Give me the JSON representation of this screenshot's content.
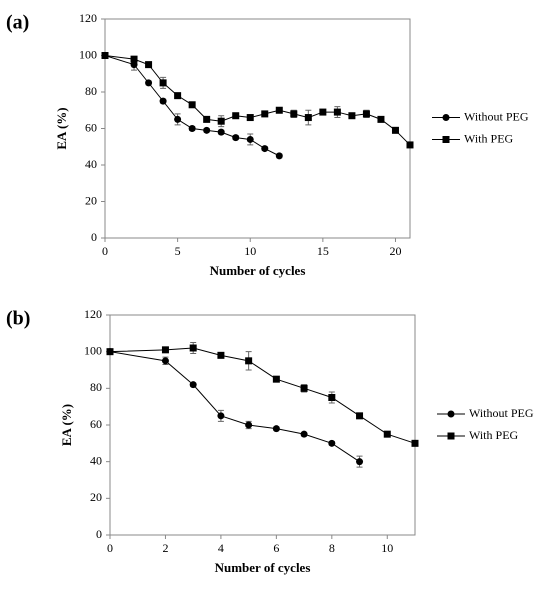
{
  "chart_data": [
    {
      "type": "line",
      "panel_label": "(a)",
      "x_label": "Number of cycles",
      "y_label": "EA (%)",
      "xlim": [
        0,
        21
      ],
      "xticks": [
        0,
        5,
        10,
        15,
        20
      ],
      "ylim": [
        0,
        120
      ],
      "yticks": [
        0,
        20,
        40,
        60,
        80,
        100,
        120
      ],
      "series": [
        {
          "name": "Without PEG",
          "marker": "circle",
          "color": "#000000",
          "x": [
            0,
            2,
            3,
            4,
            5,
            6,
            7,
            8,
            9,
            10,
            11,
            12
          ],
          "values": [
            100,
            95,
            85,
            75,
            65,
            60,
            59,
            58,
            55,
            54,
            49,
            45
          ],
          "errors": [
            0,
            3,
            1,
            1,
            3,
            1,
            1,
            1,
            1,
            3,
            1,
            1
          ]
        },
        {
          "name": "With PEG",
          "marker": "square",
          "color": "#000000",
          "x": [
            0,
            2,
            3,
            4,
            5,
            6,
            7,
            8,
            9,
            10,
            11,
            12,
            13,
            14,
            15,
            16,
            17,
            18,
            19,
            20,
            21
          ],
          "values": [
            100,
            98,
            95,
            85,
            78,
            73,
            65,
            64,
            67,
            66,
            68,
            70,
            68,
            66,
            69,
            69,
            67,
            68,
            65,
            59,
            51
          ],
          "errors": [
            1,
            1,
            1,
            3,
            1,
            1,
            1,
            3,
            1,
            1,
            1,
            1,
            2,
            4,
            1,
            3,
            1,
            2,
            1,
            1,
            1
          ]
        }
      ]
    },
    {
      "type": "line",
      "panel_label": "(b)",
      "x_label": "Number of cycles",
      "y_label": "EA (%)",
      "xlim": [
        0,
        11
      ],
      "xticks": [
        0,
        2,
        4,
        6,
        8,
        10
      ],
      "ylim": [
        0,
        120
      ],
      "yticks": [
        0,
        20,
        40,
        60,
        80,
        100,
        120
      ],
      "series": [
        {
          "name": "Without PEG",
          "marker": "circle",
          "color": "#000000",
          "x": [
            0,
            2,
            3,
            4,
            5,
            6,
            7,
            8,
            9
          ],
          "values": [
            100,
            95,
            82,
            65,
            60,
            58,
            55,
            50,
            40
          ],
          "errors": [
            1,
            2,
            1,
            3,
            2,
            1,
            1,
            1,
            3
          ]
        },
        {
          "name": "With PEG",
          "marker": "square",
          "color": "#000000",
          "x": [
            0,
            2,
            3,
            4,
            5,
            6,
            7,
            8,
            9,
            10,
            11
          ],
          "values": [
            100,
            101,
            102,
            98,
            95,
            85,
            80,
            75,
            65,
            55,
            50
          ],
          "errors": [
            1,
            1,
            3,
            1,
            5,
            1,
            2,
            3,
            1,
            1,
            1
          ]
        }
      ]
    }
  ]
}
